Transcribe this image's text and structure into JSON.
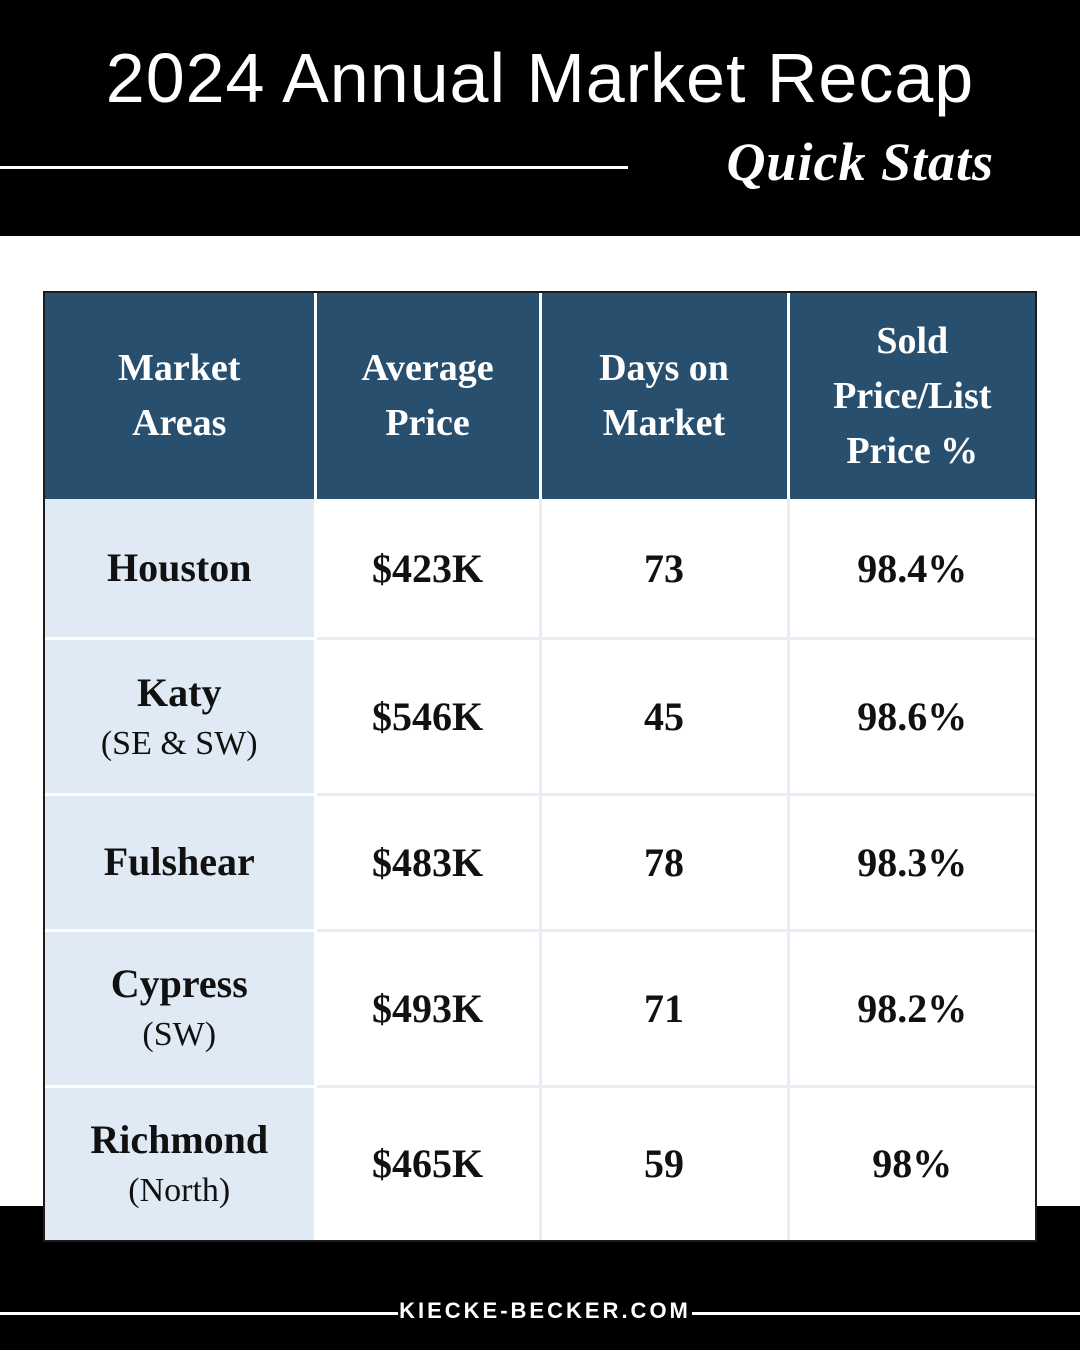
{
  "header": {
    "title": "2024 Annual Market Recap",
    "subtitle": "Quick Stats"
  },
  "table": {
    "columns": [
      "Market Areas",
      "Average Price",
      "Days on Market",
      "Sold Price/List Price %"
    ],
    "column_lines": [
      [
        "Market",
        "Areas"
      ],
      [
        "Average",
        "Price"
      ],
      [
        "Days on",
        "Market"
      ],
      [
        "Sold",
        "Price/List",
        "Price %"
      ]
    ],
    "rows": [
      {
        "area": "Houston",
        "sub": "",
        "avg_price": "$423K",
        "days": "73",
        "ratio": "98.4%"
      },
      {
        "area": "Katy",
        "sub": "(SE & SW)",
        "avg_price": "$546K",
        "days": "45",
        "ratio": "98.6%"
      },
      {
        "area": "Fulshear",
        "sub": "",
        "avg_price": "$483K",
        "days": "78",
        "ratio": "98.3%"
      },
      {
        "area": "Cypress",
        "sub": "(SW)",
        "avg_price": "$493K",
        "days": "71",
        "ratio": "98.2%"
      },
      {
        "area": "Richmond",
        "sub": "(North)",
        "avg_price": "$465K",
        "days": "59",
        "ratio": "98%"
      }
    ]
  },
  "footer": {
    "website": "KIECKE-BECKER.COM"
  },
  "colors": {
    "header_bg": "#000000",
    "table_header_bg": "#284f6e",
    "area_cell_bg": "#e0eaf4",
    "text": "#111111"
  }
}
